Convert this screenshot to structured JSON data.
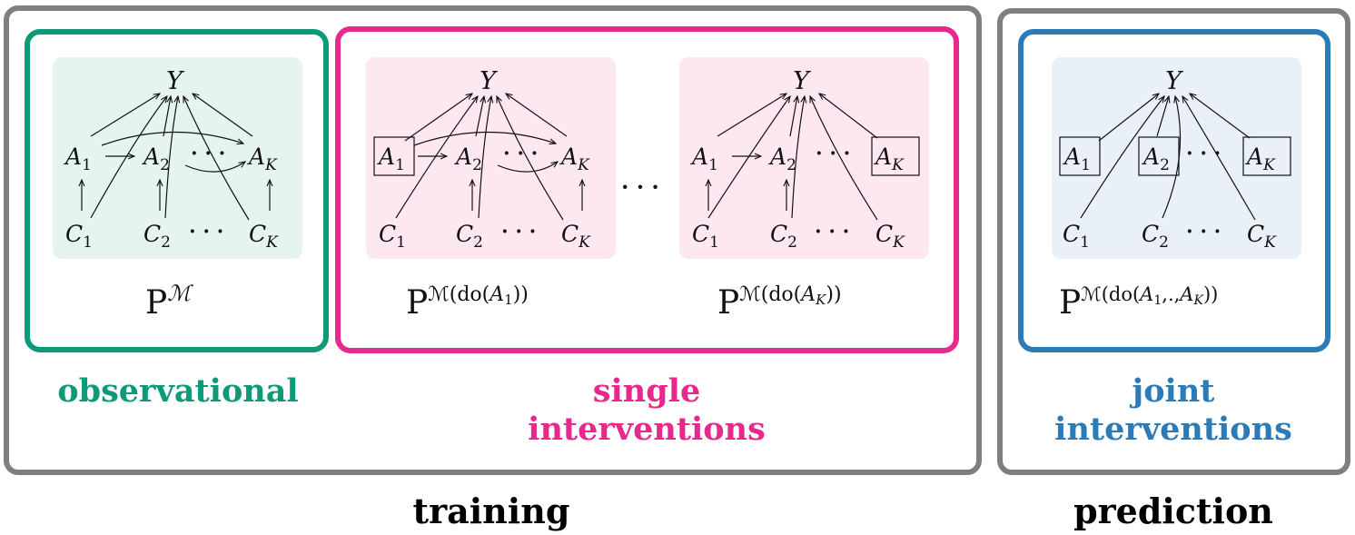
{
  "colors": {
    "group_frame": "#7f7f7f",
    "observational": "#0e9a78",
    "observational_fill": "#e6f4ef",
    "single": "#e7288c",
    "single_fill": "#fde8f1",
    "joint": "#2b7bb9",
    "joint_fill": "#e9f0f8",
    "edge": "#111111"
  },
  "nodes": {
    "Y": "Y",
    "A": "A",
    "C": "C",
    "sub1": "1",
    "sub2": "2",
    "subK": "K",
    "dots": "· · ·"
  },
  "panels": {
    "observational": {
      "dist_base": "P",
      "dist_sup": "ℳ",
      "label": "observational"
    },
    "single_1": {
      "dist_base": "P",
      "dist_sup_pre": "ℳ(do(",
      "dist_sup_var": "A",
      "dist_sup_sub": "1",
      "dist_sup_post": "))"
    },
    "single_dots": "· · ·",
    "single_K": {
      "dist_base": "P",
      "dist_sup_pre": "ℳ(do(",
      "dist_sup_var": "A",
      "dist_sup_sub": "K",
      "dist_sup_post": "))"
    },
    "single_label_line1": "single",
    "single_label_line2": "interventions",
    "joint": {
      "dist_base": "P",
      "dist_sup_pre": "ℳ(do(",
      "dist_sup_var1": "A",
      "dist_sup_sub1": "1",
      "dist_sup_mid": ",.,",
      "dist_sup_var2": "A",
      "dist_sup_sub2": "K",
      "dist_sup_post": "))",
      "label_line1": "joint",
      "label_line2": "interventions"
    }
  },
  "groups": {
    "training": "training",
    "prediction": "prediction"
  }
}
